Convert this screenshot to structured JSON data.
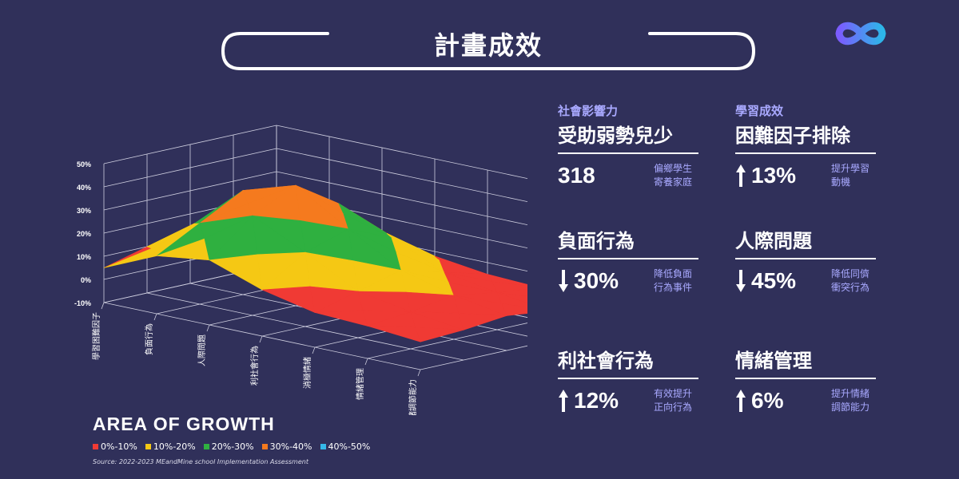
{
  "header": {
    "title": "計畫成效"
  },
  "logo": {
    "icon": "infinity-logo-icon",
    "colors": [
      "#7b5cff",
      "#2db6e8"
    ]
  },
  "metrics": [
    {
      "category": "社會影響力",
      "title": "受助弱勢兒少",
      "value": "318",
      "direction": "none",
      "note": [
        "偏鄉學生",
        "寄養家庭"
      ]
    },
    {
      "category": "學習成效",
      "title": "困難因子排除",
      "value": "13%",
      "direction": "up",
      "note": [
        "提升學習",
        "動機"
      ]
    },
    {
      "category": "",
      "title": "負面行為",
      "value": "30%",
      "direction": "down",
      "note": [
        "降低負面",
        "行為事件"
      ]
    },
    {
      "category": "",
      "title": "人際問題",
      "value": "45%",
      "direction": "down",
      "note": [
        "降低同儕",
        "衝突行為"
      ]
    },
    {
      "category": "",
      "title": "利社會行為",
      "value": "12%",
      "direction": "up",
      "note": [
        "有效提升",
        "正向行為"
      ]
    },
    {
      "category": "",
      "title": "情緒管理",
      "value": "6%",
      "direction": "up",
      "note": [
        "提升情緒",
        "調節能力"
      ]
    }
  ],
  "chart_data": {
    "type": "surface3d",
    "title": "AREA OF GROWTH",
    "source": "Source: 2022-2023 MEandMine school Implementation Assessment",
    "y_ticks": [
      "50%",
      "40%",
      "30%",
      "20%",
      "10%",
      "0%",
      "-10%"
    ],
    "zlim": [
      -10,
      50
    ],
    "categories": [
      "學習困難因子",
      "負面行為",
      "人際問題",
      "利社會行為",
      "消極情緒",
      "情緒管理",
      "情緒調節能力"
    ],
    "depth_rows": 5,
    "values": [
      [
        5,
        10,
        12,
        8,
        5
      ],
      [
        15,
        25,
        35,
        22,
        10
      ],
      [
        18,
        33,
        42,
        30,
        12
      ],
      [
        10,
        22,
        28,
        20,
        8
      ],
      [
        5,
        10,
        15,
        10,
        5
      ],
      [
        4,
        6,
        9,
        6,
        4
      ],
      [
        2,
        3,
        5,
        3,
        2
      ]
    ],
    "legend": [
      {
        "label": "0%-10%",
        "color": "#f03a34"
      },
      {
        "label": "10%-20%",
        "color": "#f5c814"
      },
      {
        "label": "20%-30%",
        "color": "#2fb040"
      },
      {
        "label": "30%-40%",
        "color": "#f57a1e"
      },
      {
        "label": "40%-50%",
        "color": "#35b7e8"
      }
    ]
  }
}
